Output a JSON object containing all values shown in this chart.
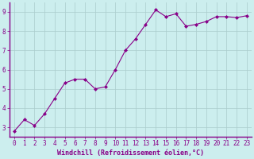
{
  "x": [
    0,
    1,
    2,
    3,
    4,
    5,
    6,
    7,
    8,
    9,
    10,
    11,
    12,
    13,
    14,
    15,
    16,
    17,
    18,
    19,
    20,
    21,
    22,
    23
  ],
  "y": [
    2.8,
    3.4,
    3.1,
    3.7,
    4.5,
    5.3,
    5.5,
    5.5,
    5.0,
    5.1,
    6.0,
    7.0,
    7.6,
    8.35,
    9.1,
    8.75,
    8.9,
    8.25,
    8.35,
    8.5,
    8.75,
    8.75,
    8.7,
    8.8
  ],
  "line_color": "#880088",
  "marker": "D",
  "marker_size": 2.0,
  "bg_color": "#cceeee",
  "grid_color": "#aacccc",
  "xlabel": "Windchill (Refroidissement éolien,°C)",
  "xlabel_color": "#880088",
  "ylabel_ticks": [
    3,
    4,
    5,
    6,
    7,
    8,
    9
  ],
  "ylim": [
    2.5,
    9.5
  ],
  "xlim": [
    -0.5,
    23.5
  ],
  "tick_fontsize": 5.5,
  "xlabel_fontsize": 6.0,
  "spine_color": "#880088"
}
